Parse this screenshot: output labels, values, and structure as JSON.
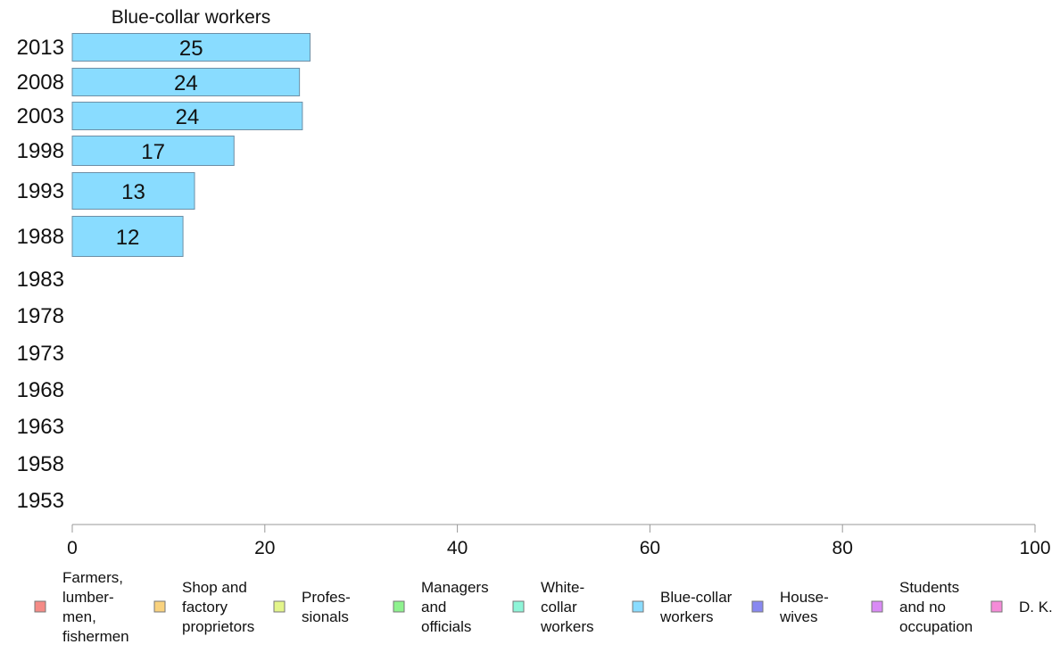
{
  "chart_data": {
    "type": "bar",
    "orientation": "horizontal",
    "stacked": true,
    "title": "Blue-collar workers",
    "xlabel": "",
    "ylabel": "",
    "xlim": [
      0,
      100
    ],
    "x_ticks": [
      0,
      20,
      40,
      60,
      80,
      100
    ],
    "grid": false,
    "legend_position": "bottom",
    "categories": [
      "2013",
      "2008",
      "2003",
      "1998",
      "1993",
      "1988",
      "1983",
      "1978",
      "1973",
      "1968",
      "1963",
      "1958",
      "1953"
    ],
    "series": [
      {
        "name": "Blue-collar workers",
        "color": "#89dcff",
        "values": [
          24.7,
          23.6,
          23.9,
          16.8,
          12.7,
          11.5,
          null,
          null,
          null,
          null,
          null,
          null,
          null
        ],
        "labels": [
          "25",
          "24",
          "24",
          "17",
          "13",
          "12",
          "",
          "",
          "",
          "",
          "",
          "",
          ""
        ]
      }
    ],
    "legend": [
      {
        "lines": [
          "Farmers,",
          "lumber-",
          "men,",
          "fishermen"
        ],
        "color": "#f58b86"
      },
      {
        "lines": [
          "Shop and",
          "factory",
          "proprietors"
        ],
        "color": "#f9d27e"
      },
      {
        "lines": [
          "Profes-",
          "sionals"
        ],
        "color": "#e3f58a"
      },
      {
        "lines": [
          "Managers",
          "and",
          "officials"
        ],
        "color": "#8ef28e"
      },
      {
        "lines": [
          "White-",
          "collar",
          "workers"
        ],
        "color": "#8ef5d8"
      },
      {
        "lines": [
          "Blue-collar",
          "workers"
        ],
        "color": "#89dcff"
      },
      {
        "lines": [
          "House-",
          "wives"
        ],
        "color": "#8888f0"
      },
      {
        "lines": [
          "Students",
          "and no",
          "occupation"
        ],
        "color": "#d98af5"
      },
      {
        "lines": [
          "D. K."
        ],
        "color": "#f58bd8"
      }
    ]
  }
}
